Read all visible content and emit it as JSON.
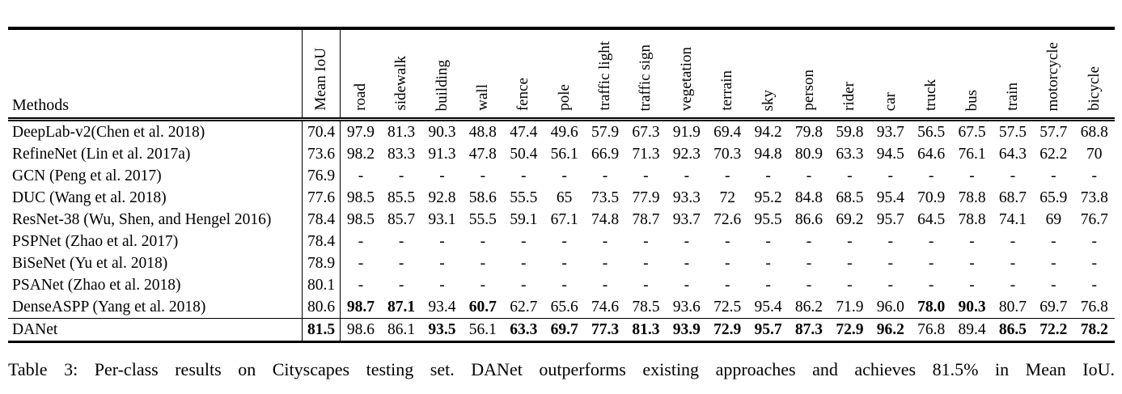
{
  "colors": {
    "text": "#000000",
    "background": "#ffffff",
    "rule": "#000000"
  },
  "table": {
    "methods_header": "Methods",
    "columns": [
      "Mean IoU",
      "road",
      "sidewalk",
      "building",
      "wall",
      "fence",
      "pole",
      "traffic light",
      "traffic sign",
      "vegetation",
      "terrain",
      "sky",
      "person",
      "rider",
      "car",
      "truck",
      "bus",
      "train",
      "motorcycle",
      "bicycle"
    ],
    "rows": [
      {
        "method": "DeepLab-v2(Chen et al. 2018)",
        "mean_iou": "70.4",
        "bold_mean": false,
        "values": [
          "97.9",
          "81.3",
          "90.3",
          "48.8",
          "47.4",
          "49.6",
          "57.9",
          "67.3",
          "91.9",
          "69.4",
          "94.2",
          "79.8",
          "59.8",
          "93.7",
          "56.5",
          "67.5",
          "57.5",
          "57.7",
          "68.8"
        ],
        "bold": []
      },
      {
        "method": "RefineNet (Lin et al. 2017a)",
        "mean_iou": "73.6",
        "bold_mean": false,
        "values": [
          "98.2",
          "83.3",
          "91.3",
          "47.8",
          "50.4",
          "56.1",
          "66.9",
          "71.3",
          "92.3",
          "70.3",
          "94.8",
          "80.9",
          "63.3",
          "94.5",
          "64.6",
          "76.1",
          "64.3",
          "62.2",
          "70"
        ],
        "bold": []
      },
      {
        "method": "GCN (Peng et al. 2017)",
        "mean_iou": "76.9",
        "bold_mean": false,
        "values": [
          "-",
          "-",
          "-",
          "-",
          "-",
          "-",
          "-",
          "-",
          "-",
          "-",
          "-",
          "-",
          "-",
          "-",
          "-",
          "-",
          "-",
          "-",
          "-"
        ],
        "bold": []
      },
      {
        "method": "DUC (Wang et al. 2018)",
        "mean_iou": "77.6",
        "bold_mean": false,
        "values": [
          "98.5",
          "85.5",
          "92.8",
          "58.6",
          "55.5",
          "65",
          "73.5",
          "77.9",
          "93.3",
          "72",
          "95.2",
          "84.8",
          "68.5",
          "95.4",
          "70.9",
          "78.8",
          "68.7",
          "65.9",
          "73.8"
        ],
        "bold": []
      },
      {
        "method": "ResNet-38 (Wu, Shen, and Hengel 2016)",
        "mean_iou": "78.4",
        "bold_mean": false,
        "values": [
          "98.5",
          "85.7",
          "93.1",
          "55.5",
          "59.1",
          "67.1",
          "74.8",
          "78.7",
          "93.7",
          "72.6",
          "95.5",
          "86.6",
          "69.2",
          "95.7",
          "64.5",
          "78.8",
          "74.1",
          "69",
          "76.7"
        ],
        "bold": []
      },
      {
        "method": "PSPNet (Zhao et al. 2017)",
        "mean_iou": "78.4",
        "bold_mean": false,
        "values": [
          "-",
          "-",
          "-",
          "-",
          "-",
          "-",
          "-",
          "-",
          "-",
          "-",
          "-",
          "-",
          "-",
          "-",
          "-",
          "-",
          "-",
          "-",
          "-"
        ],
        "bold": []
      },
      {
        "method": "BiSeNet (Yu et al. 2018)",
        "mean_iou": "78.9",
        "bold_mean": false,
        "values": [
          "-",
          "-",
          "-",
          "-",
          "-",
          "-",
          "-",
          "-",
          "-",
          "-",
          "-",
          "-",
          "-",
          "-",
          "-",
          "-",
          "-",
          "-",
          "-"
        ],
        "bold": []
      },
      {
        "method": "PSANet (Zhao et al. 2018)",
        "mean_iou": "80.1",
        "bold_mean": false,
        "values": [
          "-",
          "-",
          "-",
          "-",
          "-",
          "-",
          "-",
          "-",
          "-",
          "-",
          "-",
          "-",
          "-",
          "-",
          "-",
          "-",
          "-",
          "-",
          "-"
        ],
        "bold": []
      },
      {
        "method": "DenseASPP (Yang et al. 2018)",
        "mean_iou": "80.6",
        "bold_mean": false,
        "values": [
          "98.7",
          "87.1",
          "93.4",
          "60.7",
          "62.7",
          "65.6",
          "74.6",
          "78.5",
          "93.6",
          "72.5",
          "95.4",
          "86.2",
          "71.9",
          "96.0",
          "78.0",
          "90.3",
          "80.7",
          "69.7",
          "76.8"
        ],
        "bold": [
          0,
          1,
          3,
          14,
          15
        ]
      },
      {
        "method": "DANet",
        "mean_iou": "81.5",
        "bold_mean": true,
        "values": [
          "98.6",
          "86.1",
          "93.5",
          "56.1",
          "63.3",
          "69.7",
          "77.3",
          "81.3",
          "93.9",
          "72.9",
          "95.7",
          "87.3",
          "72.9",
          "96.2",
          "76.8",
          "89.4",
          "86.5",
          "72.2",
          "78.2"
        ],
        "bold": [
          2,
          4,
          5,
          6,
          7,
          8,
          9,
          10,
          11,
          12,
          13,
          16,
          17,
          18
        ]
      }
    ]
  },
  "caption": "Table 3: Per-class results on Cityscapes testing set. DANet outperforms existing approaches and achieves 81.5% in Mean IoU."
}
